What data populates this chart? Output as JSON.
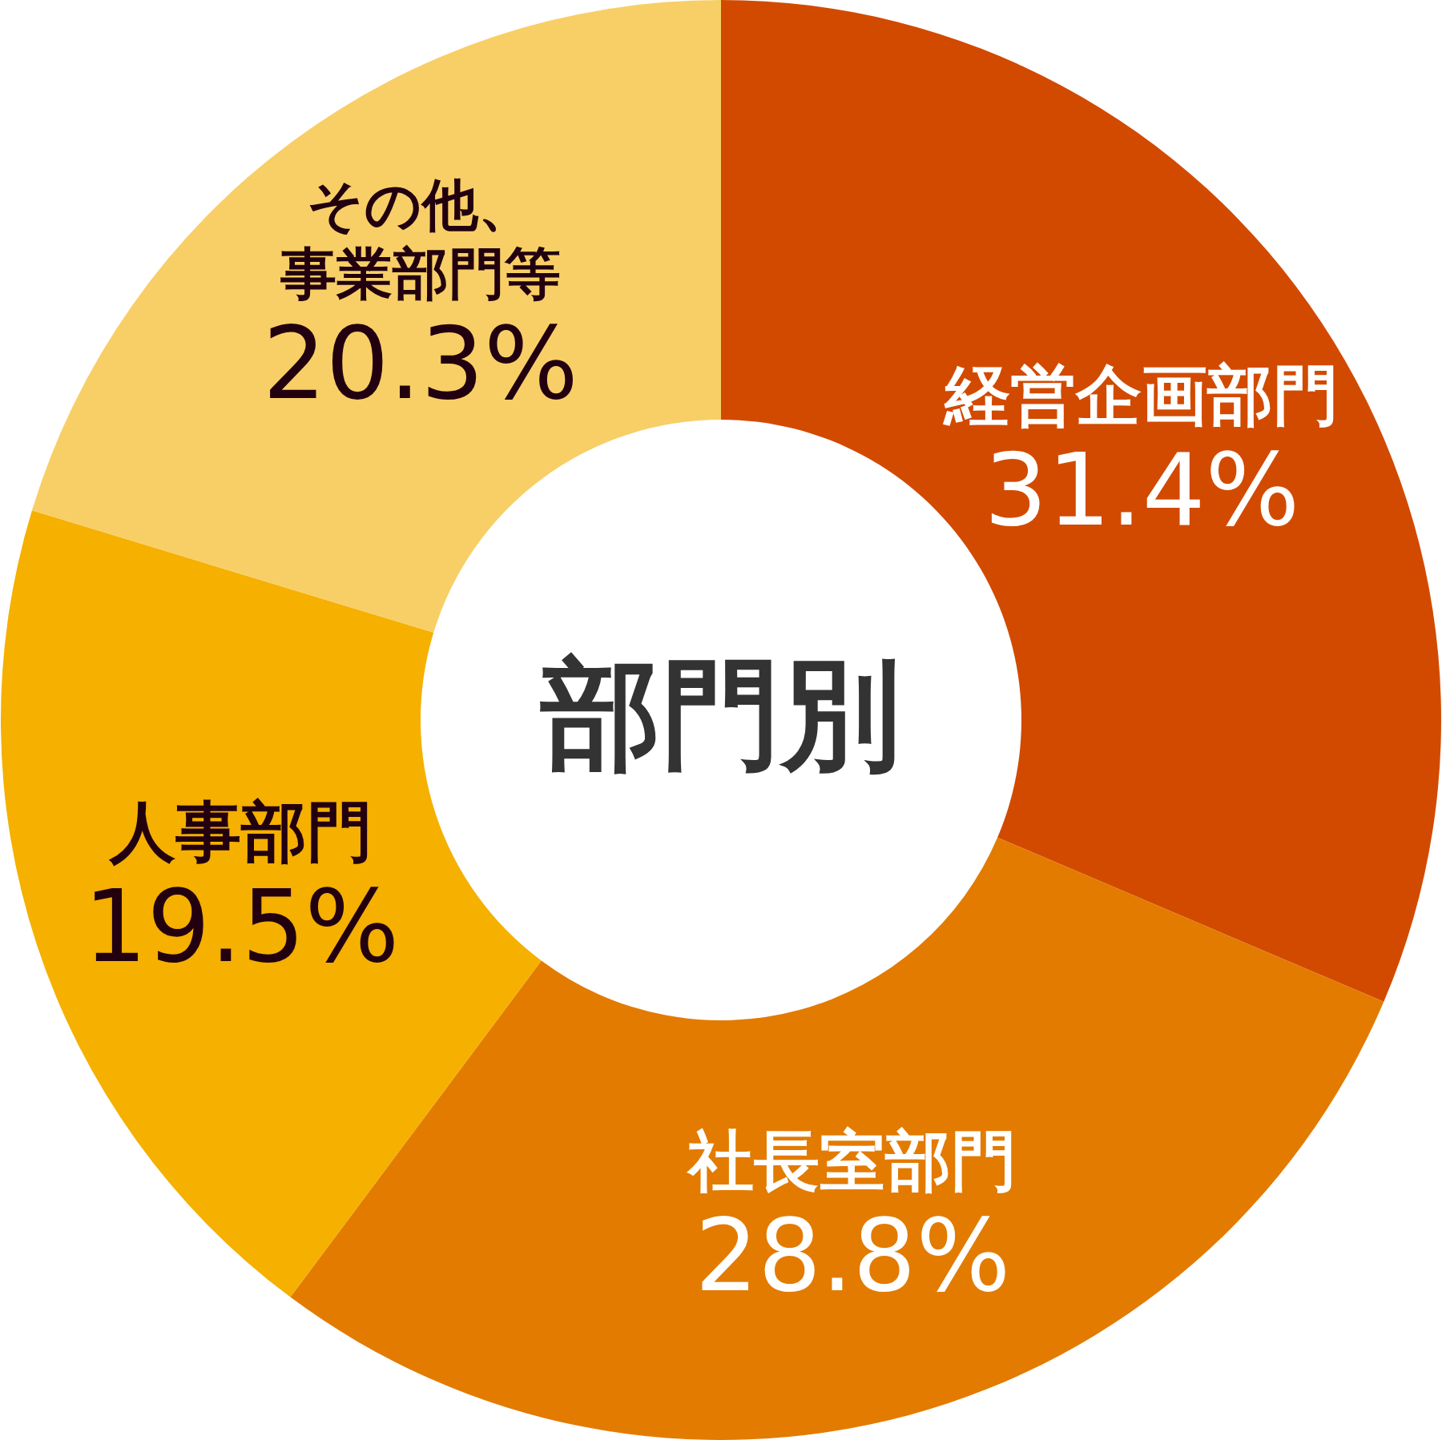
{
  "chart_data": {
    "type": "donut",
    "title": "部門別",
    "categories": [
      "経営企画部門",
      "社長室部門",
      "人事部門",
      "その他、事業部門等"
    ],
    "values": [
      31.4,
      28.8,
      19.5,
      20.3
    ],
    "colors": [
      "#d24a00",
      "#e37b00",
      "#f5b000",
      "#f8cf66"
    ],
    "value_labels": [
      "31.4%",
      "28.8%",
      "19.5%",
      "20.3%"
    ]
  }
}
